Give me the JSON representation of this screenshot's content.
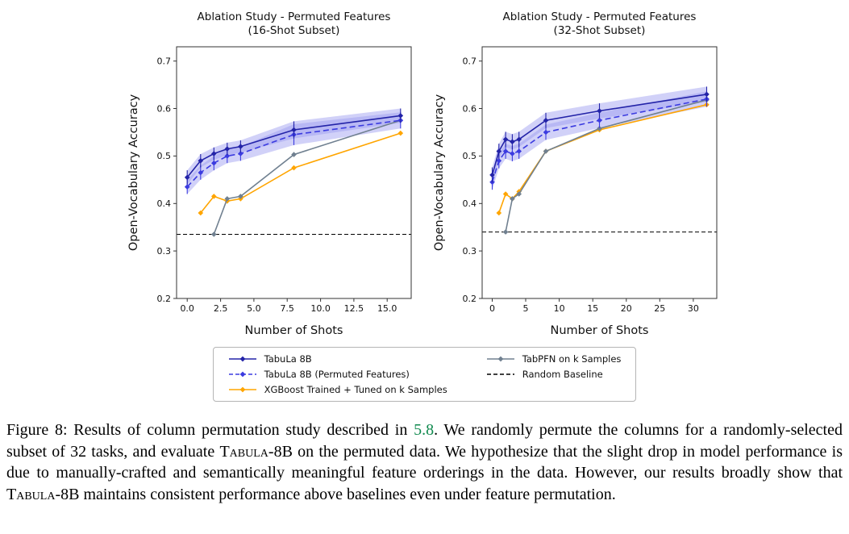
{
  "chart_data": [
    {
      "type": "line",
      "title_lines": [
        "Ablation Study - Permuted Features",
        "(16-Shot Subset)"
      ],
      "xlabel": "Number of Shots",
      "ylabel": "Open-Vocabulary Accuracy",
      "xlim": [
        -0.8,
        16.8
      ],
      "ylim": [
        0.2,
        0.73
      ],
      "xticks": {
        "values": [
          0,
          2.5,
          5,
          7.5,
          10,
          12.5,
          15
        ],
        "labels": [
          "0.0",
          "2.5",
          "5.0",
          "7.5",
          "10.0",
          "12.5",
          "15.0"
        ]
      },
      "yticks": {
        "values": [
          0.2,
          0.3,
          0.4,
          0.5,
          0.6,
          0.7
        ],
        "labels": [
          "0.2",
          "0.3",
          "0.4",
          "0.5",
          "0.6",
          "0.7"
        ]
      },
      "baseline": {
        "y": 0.335,
        "name": "Random Baseline",
        "color": "#000000"
      },
      "series": [
        {
          "name": "XGBoost Trained + Tuned on k Samples",
          "color": "#ffa500",
          "dash": "solid",
          "x": [
            1,
            2,
            3,
            4,
            8,
            16
          ],
          "y": [
            0.38,
            0.415,
            0.405,
            0.41,
            0.475,
            0.548
          ]
        },
        {
          "name": "TabPFN on k Samples",
          "color": "#708090",
          "dash": "solid",
          "x": [
            2,
            3,
            4,
            8,
            16
          ],
          "y": [
            0.335,
            0.41,
            0.415,
            0.503,
            0.575
          ]
        },
        {
          "name": "TabuLa 8B (Permuted Features)",
          "color": "#3b3be0",
          "dash": "dashed",
          "x": [
            0,
            1,
            2,
            3,
            4,
            8,
            16
          ],
          "y": [
            0.435,
            0.465,
            0.485,
            0.5,
            0.505,
            0.545,
            0.575
          ],
          "band": {
            "lower": [
              0.42,
              0.45,
              0.47,
              0.485,
              0.49,
              0.523,
              0.558
            ],
            "upper": [
              0.45,
              0.48,
              0.5,
              0.515,
              0.52,
              0.567,
              0.592
            ],
            "fill": "#9a9af0",
            "opacity": 0.45
          }
        },
        {
          "name": "TabuLa 8B",
          "color": "#2323a8",
          "dash": "solid",
          "x": [
            0,
            1,
            2,
            3,
            4,
            8,
            16
          ],
          "y": [
            0.455,
            0.49,
            0.505,
            0.515,
            0.52,
            0.555,
            0.585
          ],
          "band": {
            "lower": [
              0.44,
              0.476,
              0.492,
              0.502,
              0.507,
              0.537,
              0.57
            ],
            "upper": [
              0.47,
              0.504,
              0.518,
              0.528,
              0.533,
              0.573,
              0.6
            ],
            "fill": "#9a9af0",
            "opacity": 0.45
          }
        }
      ]
    },
    {
      "type": "line",
      "title_lines": [
        "Ablation Study - Permuted Features",
        "(32-Shot Subset)"
      ],
      "xlabel": "Number of Shots",
      "ylabel": "Open-Vocabulary Accuracy",
      "xlim": [
        -1.5,
        33.5
      ],
      "ylim": [
        0.2,
        0.73
      ],
      "xticks": {
        "values": [
          0,
          5,
          10,
          15,
          20,
          25,
          30
        ],
        "labels": [
          "0",
          "5",
          "10",
          "15",
          "20",
          "25",
          "30"
        ]
      },
      "yticks": {
        "values": [
          0.2,
          0.3,
          0.4,
          0.5,
          0.6,
          0.7
        ],
        "labels": [
          "0.2",
          "0.3",
          "0.4",
          "0.5",
          "0.6",
          "0.7"
        ]
      },
      "baseline": {
        "y": 0.34,
        "name": "Random Baseline",
        "color": "#000000"
      },
      "series": [
        {
          "name": "XGBoost Trained + Tuned on k Samples",
          "color": "#ffa500",
          "dash": "solid",
          "x": [
            1,
            2,
            3,
            4,
            8,
            16,
            32
          ],
          "y": [
            0.38,
            0.42,
            0.41,
            0.425,
            0.51,
            0.555,
            0.608
          ]
        },
        {
          "name": "TabPFN on k Samples",
          "color": "#708090",
          "dash": "solid",
          "x": [
            2,
            3,
            4,
            8,
            16,
            32
          ],
          "y": [
            0.34,
            0.41,
            0.42,
            0.51,
            0.558,
            0.618
          ]
        },
        {
          "name": "TabuLa 8B (Permuted Features)",
          "color": "#3b3be0",
          "dash": "dashed",
          "x": [
            0,
            1,
            2,
            3,
            4,
            8,
            16,
            32
          ],
          "y": [
            0.445,
            0.49,
            0.51,
            0.505,
            0.51,
            0.55,
            0.575,
            0.62
          ],
          "band": {
            "lower": [
              0.429,
              0.474,
              0.494,
              0.489,
              0.494,
              0.534,
              0.559,
              0.604
            ],
            "upper": [
              0.461,
              0.506,
              0.526,
              0.521,
              0.526,
              0.566,
              0.591,
              0.636
            ],
            "fill": "#9a9af0",
            "opacity": 0.45
          }
        },
        {
          "name": "TabuLa 8B",
          "color": "#2323a8",
          "dash": "solid",
          "x": [
            0,
            1,
            2,
            3,
            4,
            8,
            16,
            32
          ],
          "y": [
            0.46,
            0.51,
            0.535,
            0.53,
            0.535,
            0.575,
            0.595,
            0.63
          ],
          "band": {
            "lower": [
              0.444,
              0.494,
              0.519,
              0.514,
              0.519,
              0.559,
              0.579,
              0.614
            ],
            "upper": [
              0.476,
              0.526,
              0.551,
              0.546,
              0.551,
              0.591,
              0.611,
              0.646
            ],
            "fill": "#9a9af0",
            "opacity": 0.45
          }
        }
      ]
    }
  ],
  "legend": {
    "columns": [
      [
        {
          "label": "TabuLa 8B",
          "color": "#2323a8",
          "dash": "solid",
          "marker": true
        },
        {
          "label": "TabuLa 8B (Permuted Features)",
          "color": "#3b3be0",
          "dash": "dashed",
          "marker": true
        },
        {
          "label": "XGBoost Trained + Tuned on k Samples",
          "color": "#ffa500",
          "dash": "solid",
          "marker": true
        }
      ],
      [
        {
          "label": "TabPFN on k Samples",
          "color": "#708090",
          "dash": "solid",
          "marker": true
        },
        {
          "label": "Random Baseline",
          "color": "#000000",
          "dash": "dashed",
          "marker": false
        }
      ]
    ]
  },
  "caption": {
    "link_color": "#118a4f",
    "segments": [
      {
        "text": "Figure 8: Results of column permutation study described in ",
        "style": "normal"
      },
      {
        "text": "5.8",
        "style": "link"
      },
      {
        "text": ". We randomly permute the columns for a randomly-selected subset of 32 tasks, and evaluate ",
        "style": "normal"
      },
      {
        "text": "Tabula-8B",
        "style": "smallcaps"
      },
      {
        "text": " on the permuted data. We hypothesize that the slight drop in model performance is due to manually-crafted and semantically meaningful feature orderings in the data. However, our results broadly show that ",
        "style": "normal"
      },
      {
        "text": "Tabula-8B",
        "style": "smallcaps"
      },
      {
        "text": " maintains consistent performance above baselines even under feature permutation.",
        "style": "normal"
      }
    ]
  }
}
